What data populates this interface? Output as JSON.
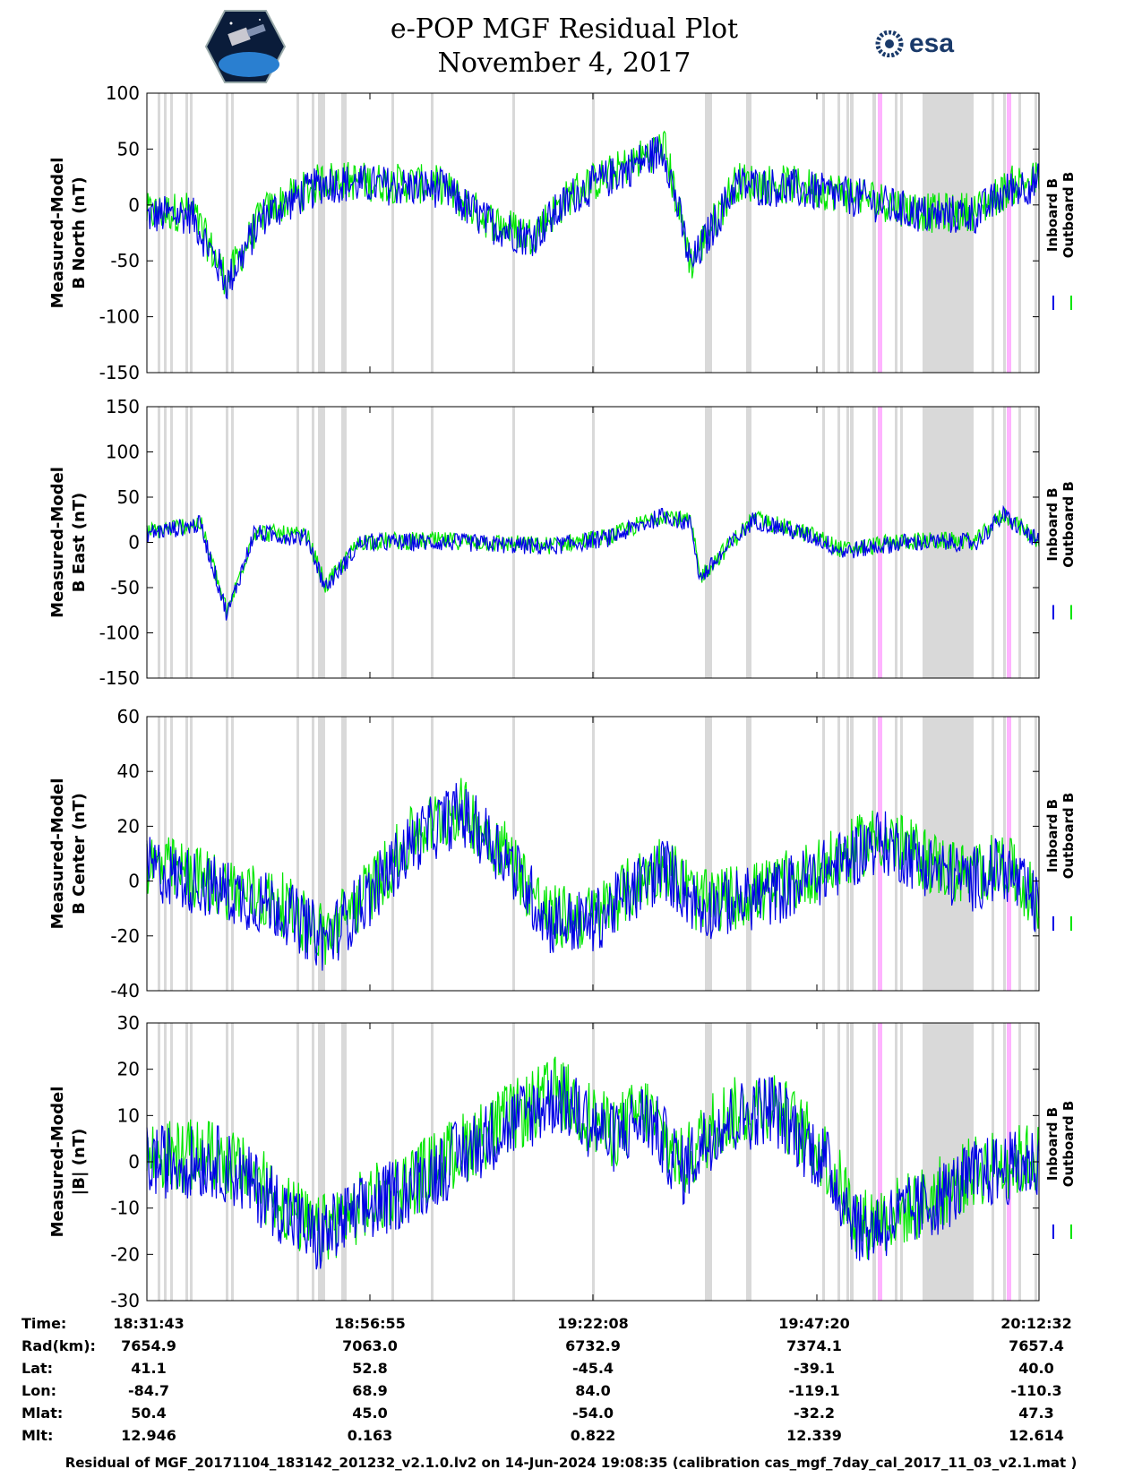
{
  "header": {
    "title_line1": "e-POP MGF Residual Plot",
    "title_line2": "November 4, 2017",
    "left_logo": "cassiope-mission-badge",
    "right_logo_text": "esa"
  },
  "colors": {
    "inboard": "#0000e6",
    "outboard": "#00e600",
    "gap": "#d9d9d9",
    "pink": "#ffb3ff"
  },
  "chart_data": [
    {
      "type": "line",
      "panel": "north",
      "ylabel_line1": "Measured-Model",
      "ylabel_line2": "B North (nT)",
      "ylim": [
        -150,
        100
      ],
      "yticks": [
        "100",
        "50",
        "0",
        "-50",
        "-100",
        "-150"
      ],
      "legend": [
        "Inboard B",
        "Outboard B"
      ],
      "series_shape": [
        [
          0,
          -10
        ],
        [
          0.05,
          -8
        ],
        [
          0.09,
          -70
        ],
        [
          0.13,
          -10
        ],
        [
          0.2,
          20
        ],
        [
          0.25,
          18
        ],
        [
          0.33,
          15
        ],
        [
          0.38,
          -15
        ],
        [
          0.43,
          -30
        ],
        [
          0.48,
          10
        ],
        [
          0.52,
          25
        ],
        [
          0.58,
          50
        ],
        [
          0.61,
          -55
        ],
        [
          0.66,
          18
        ],
        [
          0.72,
          15
        ],
        [
          0.8,
          6
        ],
        [
          0.85,
          -5
        ],
        [
          0.88,
          -10
        ],
        [
          0.93,
          -8
        ],
        [
          0.97,
          15
        ],
        [
          1.0,
          20
        ]
      ],
      "amplitude": 18
    },
    {
      "type": "line",
      "panel": "east",
      "ylabel_line1": "Measured-Model",
      "ylabel_line2": "B East (nT)",
      "ylim": [
        -150,
        150
      ],
      "yticks": [
        "150",
        "100",
        "50",
        "0",
        "-50",
        "-100",
        "-150"
      ],
      "legend": [
        "Inboard B",
        "Outboard B"
      ],
      "series_shape": [
        [
          0,
          10
        ],
        [
          0.06,
          20
        ],
        [
          0.09,
          -80
        ],
        [
          0.12,
          10
        ],
        [
          0.18,
          5
        ],
        [
          0.2,
          -50
        ],
        [
          0.24,
          0
        ],
        [
          0.35,
          0
        ],
        [
          0.45,
          -5
        ],
        [
          0.52,
          5
        ],
        [
          0.58,
          30
        ],
        [
          0.61,
          20
        ],
        [
          0.62,
          -40
        ],
        [
          0.68,
          25
        ],
        [
          0.75,
          5
        ],
        [
          0.78,
          -10
        ],
        [
          0.85,
          0
        ],
        [
          0.93,
          0
        ],
        [
          0.96,
          30
        ],
        [
          1.0,
          0
        ]
      ],
      "amplitude": 10
    },
    {
      "type": "line",
      "panel": "center",
      "ylabel_line1": "Measured-Model",
      "ylabel_line2": "B Center (nT)",
      "ylim": [
        -40,
        60
      ],
      "yticks": [
        "60",
        "40",
        "20",
        "0",
        "-20",
        "-40"
      ],
      "legend": [
        "Inboard B",
        "Outboard B"
      ],
      "series_shape": [
        [
          0,
          5
        ],
        [
          0.05,
          0
        ],
        [
          0.1,
          -5
        ],
        [
          0.15,
          -10
        ],
        [
          0.2,
          -22
        ],
        [
          0.25,
          -5
        ],
        [
          0.3,
          15
        ],
        [
          0.35,
          25
        ],
        [
          0.4,
          10
        ],
        [
          0.45,
          -15
        ],
        [
          0.5,
          -15
        ],
        [
          0.58,
          5
        ],
        [
          0.62,
          -10
        ],
        [
          0.7,
          -5
        ],
        [
          0.77,
          5
        ],
        [
          0.82,
          15
        ],
        [
          0.88,
          5
        ],
        [
          0.92,
          0
        ],
        [
          0.96,
          5
        ],
        [
          1.0,
          -10
        ]
      ],
      "amplitude": 12
    },
    {
      "type": "line",
      "panel": "total",
      "ylabel_line1": "Measured-Model",
      "ylabel_line2": "|B| (nT)",
      "ylim": [
        -30,
        30
      ],
      "yticks": [
        "30",
        "20",
        "10",
        "0",
        "-10",
        "-20",
        "-30"
      ],
      "legend": [
        "Inboard B",
        "Outboard B"
      ],
      "series_shape": [
        [
          0,
          0
        ],
        [
          0.08,
          0
        ],
        [
          0.14,
          -8
        ],
        [
          0.19,
          -17
        ],
        [
          0.22,
          -13
        ],
        [
          0.3,
          -5
        ],
        [
          0.38,
          5
        ],
        [
          0.46,
          14
        ],
        [
          0.52,
          5
        ],
        [
          0.56,
          10
        ],
        [
          0.6,
          -2
        ],
        [
          0.64,
          8
        ],
        [
          0.7,
          12
        ],
        [
          0.76,
          0
        ],
        [
          0.8,
          -15
        ],
        [
          0.87,
          -10
        ],
        [
          0.93,
          -3
        ],
        [
          1.0,
          0
        ]
      ],
      "amplitude": 8
    }
  ],
  "ephemeris": {
    "labels": [
      "Time:",
      "Rad(km):",
      "Lat:",
      "Lon:",
      "Mlat:",
      "Mlt:"
    ],
    "columns": [
      [
        "18:31:43",
        "7654.9",
        "41.1",
        "-84.7",
        "50.4",
        "12.946"
      ],
      [
        "18:56:55",
        "7063.0",
        "52.8",
        "68.9",
        "45.0",
        "0.163"
      ],
      [
        "19:22:08",
        "6732.9",
        "-45.4",
        "84.0",
        "-54.0",
        "0.822"
      ],
      [
        "19:47:20",
        "7374.1",
        "-39.1",
        "-119.1",
        "-32.2",
        "12.339"
      ],
      [
        "20:12:32",
        "7657.4",
        "40.0",
        "-110.3",
        "47.3",
        "12.614"
      ]
    ]
  },
  "footer": "Residual of MGF_20171104_183142_201232_v2.1.0.lv2 on 14-Jun-2024 19:08:35 (calibration cas_mgf_7day_cal_2017_11_03_v2.1.mat )"
}
